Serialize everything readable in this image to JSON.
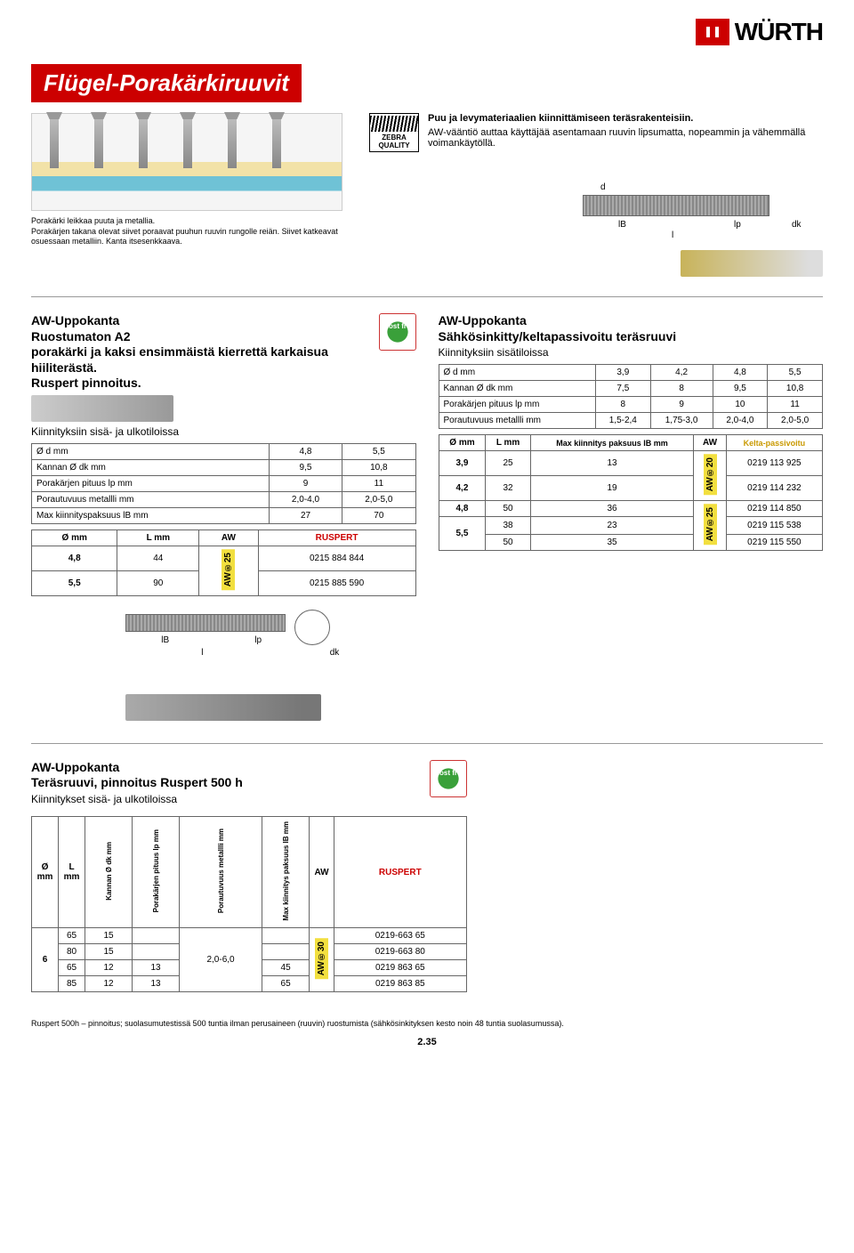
{
  "logo": {
    "brand": "WÜRTH"
  },
  "title": "Flügel-Porakärkiruuvit",
  "intro": {
    "bold": "Puu ja levymateriaalien kiinnittämiseen teräsrakenteisiin.",
    "plain": "AW-vääntiö auttaa käyttäjää asentamaan ruuvin lipsumatta, nopeammin ja vähemmällä voimankäytöllä.",
    "zebra": "ZEBRA QUALITY",
    "diagram_note": "Porakärki leikkaa puuta ja metallia.\nPorakärjen takana olevat siivet poraavat puuhun ruuvin rungolle reiän. Siivet katkeavat osuessaan metalliin. Kanta itsesenkkaava."
  },
  "tech_labels": {
    "d": "d",
    "lb": "lB",
    "lp": "lp",
    "l": "l",
    "dk": "dk"
  },
  "section_a": {
    "heading": "AW-Uppokanta\nRuostumaton A2\nporakärki ja kaksi ensimmäistä kierrettä karkaisua hiiliterästä.\nRuspert pinnoitus.",
    "sub": "Kiinnityksiin sisä- ja ulkotiloissa",
    "spec_table": {
      "rows": [
        {
          "label": "Ø d mm",
          "c1": "4,8",
          "c2": "5,5"
        },
        {
          "label": "Kannan Ø dk mm",
          "c1": "9,5",
          "c2": "10,8"
        },
        {
          "label": "Porakärjen pituus lp mm",
          "c1": "9",
          "c2": "11"
        },
        {
          "label": "Porautuvuus metallli mm",
          "c1": "2,0-4,0",
          "c2": "2,0-5,0"
        },
        {
          "label": "Max kiinnityspaksuus lB mm",
          "c1": "27",
          "c2": "70"
        }
      ]
    },
    "order_table": {
      "head": {
        "c1": "Ø mm",
        "c2": "L mm",
        "c3": "AW",
        "c4": "RUSPERT"
      },
      "rows": [
        {
          "d": "4,8",
          "l": "44",
          "aw": "AW®25",
          "art": "0215 884 844"
        },
        {
          "d": "5,5",
          "l": "90",
          "aw": "",
          "art": "0215 885 590"
        }
      ]
    }
  },
  "section_b": {
    "heading": "AW-Uppokanta\nSähkösinkitty/keltapassivoitu teräsruuvi",
    "sub": "Kiinnityksiin sisätiloissa",
    "spec_table": {
      "rows": [
        {
          "label": "Ø d mm",
          "v": [
            "3,9",
            "4,2",
            "4,8",
            "5,5"
          ]
        },
        {
          "label": "Kannan Ø dk mm",
          "v": [
            "7,5",
            "8",
            "9,5",
            "10,8"
          ]
        },
        {
          "label": "Porakärjen pituus lp mm",
          "v": [
            "8",
            "9",
            "10",
            "11"
          ]
        },
        {
          "label": "Porautuvuus metallli mm",
          "v": [
            "1,5-2,4",
            "1,75-3,0",
            "2,0-4,0",
            "2,0-5,0"
          ]
        }
      ]
    },
    "order_table": {
      "head": {
        "c1": "Ø mm",
        "c2": "L mm",
        "c3": "Max kiinnitys paksuus lB mm",
        "c4": "AW",
        "c5": "Kelta-passivoitu"
      },
      "rows": [
        {
          "d": "3,9",
          "l": "25",
          "p": "13",
          "aw": "AW®20",
          "art": "0219 113 925"
        },
        {
          "d": "4,2",
          "l": "32",
          "p": "19",
          "aw": "",
          "art": "0219 114 232"
        },
        {
          "d": "4,8",
          "l": "50",
          "p": "36",
          "aw": "AW®25",
          "art": "0219 114 850"
        },
        {
          "d": "5,5",
          "l": "38",
          "p": "23",
          "aw": "",
          "art": "0219 115 538"
        },
        {
          "d": "",
          "l": "50",
          "p": "35",
          "aw": "",
          "art": "0219 115 550"
        }
      ]
    }
  },
  "section_c": {
    "heading": "AW-Uppokanta\nTeräsruuvi, pinnoitus Ruspert 500 h",
    "sub": "Kiinnitykset sisä- ja ulkotiloissa",
    "head": {
      "c1": "Ø mm",
      "c2": "L mm",
      "c3": "Kannan Ø dk mm",
      "c4": "Porakärjen pituus lp mm",
      "c5": "Porautuvuus metallli mm",
      "c6": "Max kiinnitys paksuus lB mm",
      "c7": "AW",
      "c8": "RUSPERT"
    },
    "rows": [
      {
        "d": "6",
        "l": "65",
        "dk": "15",
        "lp": "",
        "pm": "2,0-6,0",
        "mk": "",
        "aw": "AW®30",
        "art": "0219-663 65"
      },
      {
        "d": "",
        "l": "80",
        "dk": "15",
        "lp": "",
        "pm": "",
        "mk": "",
        "aw": "",
        "art": "0219-663 80"
      },
      {
        "d": "",
        "l": "65",
        "dk": "12",
        "lp": "13",
        "pm": "",
        "mk": "45",
        "aw": "",
        "art": "0219 863 65"
      },
      {
        "d": "",
        "l": "85",
        "dk": "12",
        "lp": "13",
        "pm": "",
        "mk": "65",
        "aw": "",
        "art": "0219 863 85"
      }
    ]
  },
  "footer": "Ruspert 500h – pinnoitus; suolasumutestissä 500 tuntia ilman perusaineen (ruuvin) ruostumista (sähkösinkityksen kesto noin 48 tuntia suolasumussa).",
  "page": "2.35",
  "colors": {
    "red": "#cc0000",
    "yellow_badge": "#f2df3f",
    "kelta": "#c99900"
  }
}
